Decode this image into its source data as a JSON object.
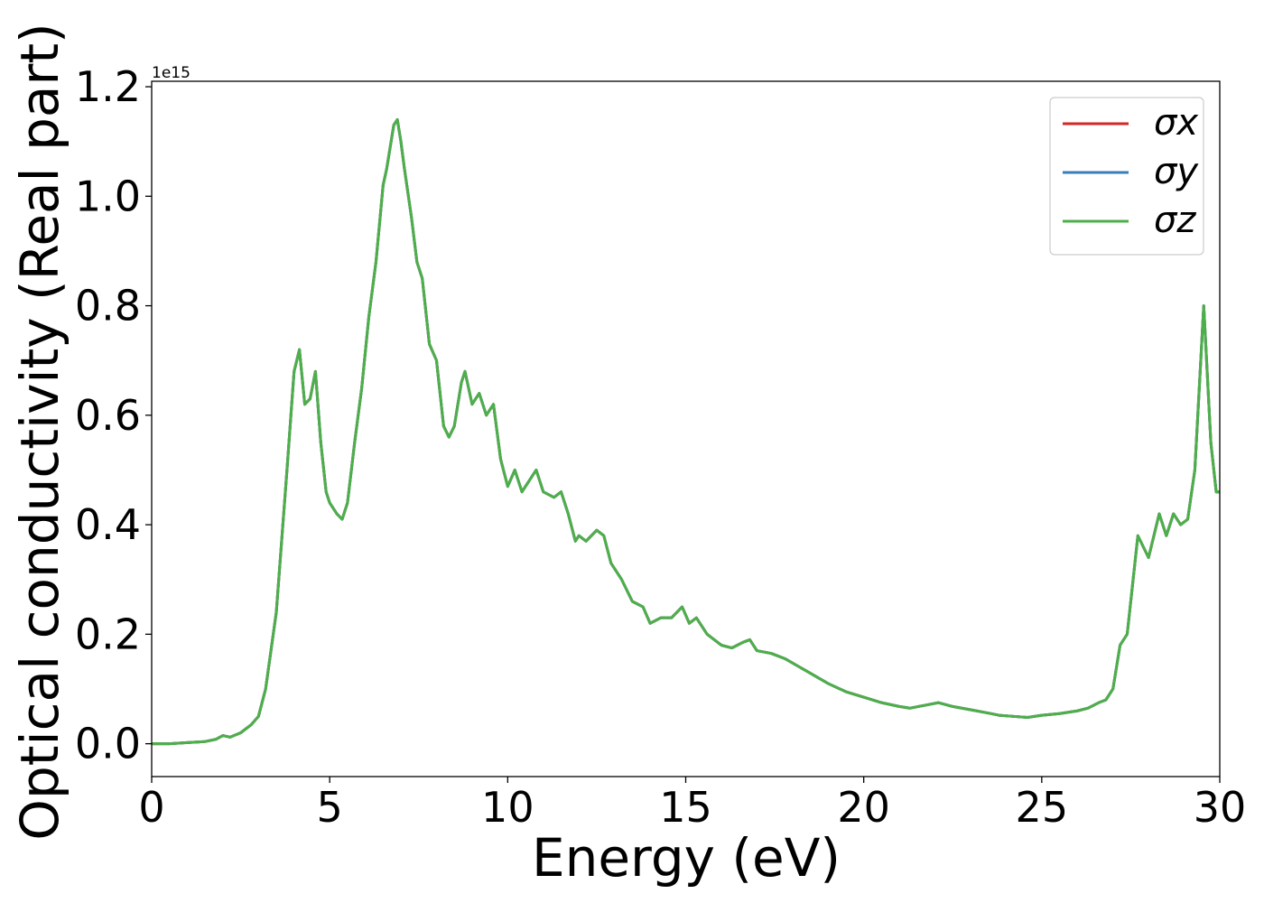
{
  "chart_data": {
    "type": "line",
    "title": "",
    "xlabel": "Energy (eV)",
    "ylabel": "Optical conductivity (Real part)",
    "y_offset_label": "1e15",
    "xlim": [
      0,
      30
    ],
    "ylim": [
      -0.06,
      1.21
    ],
    "xticks": [
      0,
      5,
      10,
      15,
      20,
      25,
      30
    ],
    "xtick_labels": [
      "0",
      "5",
      "10",
      "15",
      "20",
      "25",
      "30"
    ],
    "yticks": [
      0.0,
      0.2,
      0.4,
      0.6,
      0.8,
      1.0,
      1.2
    ],
    "ytick_labels": [
      "0.0",
      "0.2",
      "0.4",
      "0.6",
      "0.8",
      "1.0",
      "1.2"
    ],
    "grid": false,
    "legend_position": "top-right",
    "x": [
      0,
      0.5,
      1.0,
      1.5,
      1.8,
      2.0,
      2.2,
      2.5,
      2.8,
      3.0,
      3.2,
      3.5,
      3.8,
      4.0,
      4.15,
      4.3,
      4.45,
      4.6,
      4.75,
      4.9,
      5.0,
      5.2,
      5.35,
      5.5,
      5.7,
      5.9,
      6.1,
      6.3,
      6.5,
      6.6,
      6.8,
      6.9,
      7.0,
      7.1,
      7.3,
      7.45,
      7.6,
      7.8,
      8.0,
      8.2,
      8.35,
      8.5,
      8.7,
      8.8,
      9.0,
      9.2,
      9.4,
      9.6,
      9.8,
      10.0,
      10.2,
      10.4,
      10.6,
      10.8,
      11.0,
      11.3,
      11.5,
      11.7,
      11.9,
      12.0,
      12.2,
      12.5,
      12.7,
      12.9,
      13.2,
      13.5,
      13.8,
      14.0,
      14.3,
      14.6,
      14.9,
      15.1,
      15.3,
      15.6,
      16.0,
      16.3,
      16.6,
      16.8,
      17.0,
      17.4,
      17.8,
      18.2,
      18.6,
      19.0,
      19.5,
      20.0,
      20.5,
      21.0,
      21.3,
      21.7,
      22.1,
      22.5,
      23.0,
      23.5,
      23.8,
      24.2,
      24.6,
      25.0,
      25.5,
      26.0,
      26.3,
      26.6,
      26.8,
      27.0,
      27.2,
      27.4,
      27.7,
      28.0,
      28.3,
      28.5,
      28.7,
      28.9,
      29.1,
      29.3,
      29.55,
      29.75,
      29.9,
      30.0
    ],
    "series": [
      {
        "name": "σx",
        "color": "#d62728",
        "values": [
          0.0,
          0.0,
          0.002,
          0.004,
          0.008,
          0.015,
          0.012,
          0.02,
          0.035,
          0.05,
          0.1,
          0.24,
          0.5,
          0.68,
          0.72,
          0.62,
          0.63,
          0.68,
          0.55,
          0.46,
          0.44,
          0.42,
          0.41,
          0.44,
          0.55,
          0.65,
          0.78,
          0.88,
          1.02,
          1.05,
          1.13,
          1.14,
          1.1,
          1.05,
          0.96,
          0.88,
          0.85,
          0.73,
          0.7,
          0.58,
          0.56,
          0.58,
          0.66,
          0.68,
          0.62,
          0.64,
          0.6,
          0.62,
          0.52,
          0.47,
          0.5,
          0.46,
          0.48,
          0.5,
          0.46,
          0.45,
          0.46,
          0.42,
          0.37,
          0.38,
          0.37,
          0.39,
          0.38,
          0.33,
          0.3,
          0.26,
          0.25,
          0.22,
          0.23,
          0.23,
          0.25,
          0.22,
          0.23,
          0.2,
          0.18,
          0.175,
          0.185,
          0.19,
          0.17,
          0.165,
          0.155,
          0.14,
          0.125,
          0.11,
          0.095,
          0.085,
          0.075,
          0.068,
          0.065,
          0.07,
          0.075,
          0.068,
          0.062,
          0.056,
          0.052,
          0.05,
          0.048,
          0.052,
          0.055,
          0.06,
          0.065,
          0.075,
          0.08,
          0.1,
          0.18,
          0.2,
          0.38,
          0.34,
          0.42,
          0.38,
          0.42,
          0.4,
          0.41,
          0.5,
          0.8,
          0.55,
          0.46,
          0.46
        ]
      },
      {
        "name": "σy",
        "color": "#377eb8",
        "values": [
          0.0,
          0.0,
          0.002,
          0.004,
          0.008,
          0.015,
          0.012,
          0.02,
          0.035,
          0.05,
          0.1,
          0.24,
          0.5,
          0.68,
          0.72,
          0.62,
          0.63,
          0.68,
          0.55,
          0.46,
          0.44,
          0.42,
          0.41,
          0.44,
          0.55,
          0.65,
          0.78,
          0.88,
          1.02,
          1.05,
          1.13,
          1.14,
          1.1,
          1.05,
          0.96,
          0.88,
          0.85,
          0.73,
          0.7,
          0.58,
          0.56,
          0.58,
          0.66,
          0.68,
          0.62,
          0.64,
          0.6,
          0.62,
          0.52,
          0.47,
          0.5,
          0.46,
          0.48,
          0.5,
          0.46,
          0.45,
          0.46,
          0.42,
          0.37,
          0.38,
          0.37,
          0.39,
          0.38,
          0.33,
          0.3,
          0.26,
          0.25,
          0.22,
          0.23,
          0.23,
          0.25,
          0.22,
          0.23,
          0.2,
          0.18,
          0.175,
          0.185,
          0.19,
          0.17,
          0.165,
          0.155,
          0.14,
          0.125,
          0.11,
          0.095,
          0.085,
          0.075,
          0.068,
          0.065,
          0.07,
          0.075,
          0.068,
          0.062,
          0.056,
          0.052,
          0.05,
          0.048,
          0.052,
          0.055,
          0.06,
          0.065,
          0.075,
          0.08,
          0.1,
          0.18,
          0.2,
          0.38,
          0.34,
          0.42,
          0.38,
          0.42,
          0.4,
          0.41,
          0.5,
          0.8,
          0.55,
          0.46,
          0.46
        ]
      },
      {
        "name": "σz",
        "color": "#4daf4a",
        "values": [
          0.0,
          0.0,
          0.002,
          0.004,
          0.008,
          0.015,
          0.012,
          0.02,
          0.035,
          0.05,
          0.1,
          0.24,
          0.5,
          0.68,
          0.72,
          0.62,
          0.63,
          0.68,
          0.55,
          0.46,
          0.44,
          0.42,
          0.41,
          0.44,
          0.55,
          0.65,
          0.78,
          0.88,
          1.02,
          1.05,
          1.13,
          1.14,
          1.1,
          1.05,
          0.96,
          0.88,
          0.85,
          0.73,
          0.7,
          0.58,
          0.56,
          0.58,
          0.66,
          0.68,
          0.62,
          0.64,
          0.6,
          0.62,
          0.52,
          0.47,
          0.5,
          0.46,
          0.48,
          0.5,
          0.46,
          0.45,
          0.46,
          0.42,
          0.37,
          0.38,
          0.37,
          0.39,
          0.38,
          0.33,
          0.3,
          0.26,
          0.25,
          0.22,
          0.23,
          0.23,
          0.25,
          0.22,
          0.23,
          0.2,
          0.18,
          0.175,
          0.185,
          0.19,
          0.17,
          0.165,
          0.155,
          0.14,
          0.125,
          0.11,
          0.095,
          0.085,
          0.075,
          0.068,
          0.065,
          0.07,
          0.075,
          0.068,
          0.062,
          0.056,
          0.052,
          0.05,
          0.048,
          0.052,
          0.055,
          0.06,
          0.065,
          0.075,
          0.08,
          0.1,
          0.18,
          0.2,
          0.38,
          0.34,
          0.42,
          0.38,
          0.42,
          0.4,
          0.41,
          0.5,
          0.8,
          0.55,
          0.46,
          0.46
        ]
      }
    ]
  }
}
